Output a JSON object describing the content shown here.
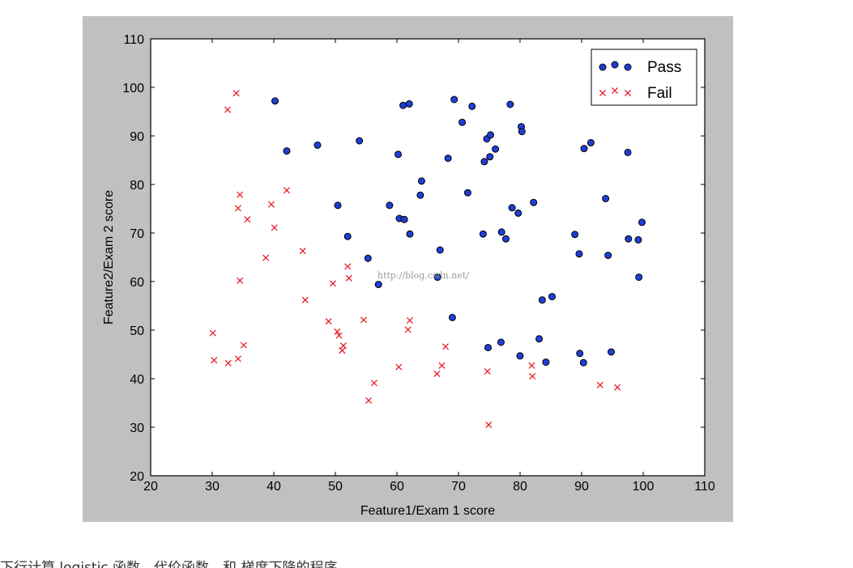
{
  "chart_data": {
    "type": "scatter",
    "xlabel": "Feature1/Exam 1 score",
    "ylabel": "Feature2/Exam 2 score",
    "xlim": [
      20,
      110
    ],
    "ylim": [
      20,
      110
    ],
    "xticks": [
      20,
      30,
      40,
      50,
      60,
      70,
      80,
      90,
      100,
      110
    ],
    "yticks": [
      20,
      30,
      40,
      50,
      60,
      70,
      80,
      90,
      100,
      110
    ],
    "grid": false,
    "legend_position": "top-right",
    "series": [
      {
        "name": "Pass",
        "marker": "circle",
        "color": "#1f3fd8",
        "edge_color": "#000000",
        "points": [
          [
            40.2,
            97.2
          ],
          [
            42.1,
            86.9
          ],
          [
            47.1,
            88.1
          ],
          [
            53.9,
            89.0
          ],
          [
            61.0,
            96.3
          ],
          [
            62.0,
            96.6
          ],
          [
            60.2,
            86.2
          ],
          [
            69.3,
            97.5
          ],
          [
            70.6,
            92.8
          ],
          [
            72.2,
            96.1
          ],
          [
            78.4,
            96.5
          ],
          [
            74.6,
            89.4
          ],
          [
            75.2,
            90.2
          ],
          [
            80.2,
            91.9
          ],
          [
            80.3,
            90.9
          ],
          [
            68.3,
            85.4
          ],
          [
            74.2,
            84.7
          ],
          [
            75.1,
            85.7
          ],
          [
            76.0,
            87.3
          ],
          [
            90.4,
            87.4
          ],
          [
            91.5,
            88.6
          ],
          [
            97.5,
            86.6
          ],
          [
            50.4,
            75.7
          ],
          [
            58.8,
            75.7
          ],
          [
            64.0,
            80.7
          ],
          [
            63.8,
            77.8
          ],
          [
            71.5,
            78.3
          ],
          [
            60.4,
            73.0
          ],
          [
            61.2,
            72.8
          ],
          [
            78.7,
            75.2
          ],
          [
            79.7,
            74.1
          ],
          [
            82.2,
            76.3
          ],
          [
            93.9,
            77.1
          ],
          [
            99.8,
            72.2
          ],
          [
            52.0,
            69.3
          ],
          [
            62.1,
            69.8
          ],
          [
            74.0,
            69.8
          ],
          [
            77.0,
            70.2
          ],
          [
            77.7,
            68.8
          ],
          [
            88.9,
            69.7
          ],
          [
            97.6,
            68.8
          ],
          [
            99.2,
            68.6
          ],
          [
            55.3,
            64.8
          ],
          [
            67.0,
            66.5
          ],
          [
            66.6,
            60.9
          ],
          [
            57.0,
            59.4
          ],
          [
            89.6,
            65.7
          ],
          [
            94.3,
            65.4
          ],
          [
            99.3,
            60.9
          ],
          [
            85.2,
            56.9
          ],
          [
            83.6,
            56.2
          ],
          [
            69.0,
            52.6
          ],
          [
            74.8,
            46.4
          ],
          [
            76.9,
            47.5
          ],
          [
            83.1,
            48.2
          ],
          [
            80.0,
            44.7
          ],
          [
            84.2,
            43.4
          ],
          [
            89.7,
            45.2
          ],
          [
            90.3,
            43.3
          ],
          [
            94.8,
            45.5
          ]
        ]
      },
      {
        "name": "Fail",
        "marker": "x",
        "color": "#e8101c",
        "points": [
          [
            32.5,
            95.4
          ],
          [
            33.9,
            98.8
          ],
          [
            34.5,
            77.9
          ],
          [
            34.2,
            75.1
          ],
          [
            35.7,
            72.8
          ],
          [
            39.6,
            75.9
          ],
          [
            40.1,
            71.1
          ],
          [
            42.1,
            78.8
          ],
          [
            38.7,
            64.9
          ],
          [
            44.7,
            66.3
          ],
          [
            52.0,
            63.1
          ],
          [
            52.2,
            60.7
          ],
          [
            49.6,
            59.6
          ],
          [
            34.5,
            60.2
          ],
          [
            45.1,
            56.2
          ],
          [
            30.1,
            49.4
          ],
          [
            30.3,
            43.8
          ],
          [
            32.6,
            43.2
          ],
          [
            34.2,
            44.1
          ],
          [
            35.1,
            46.9
          ],
          [
            48.9,
            51.8
          ],
          [
            50.3,
            49.7
          ],
          [
            50.6,
            48.9
          ],
          [
            51.3,
            46.8
          ],
          [
            51.1,
            45.8
          ],
          [
            54.6,
            52.1
          ],
          [
            61.8,
            50.1
          ],
          [
            62.1,
            52.0
          ],
          [
            60.3,
            42.4
          ],
          [
            56.3,
            39.1
          ],
          [
            55.4,
            35.5
          ],
          [
            66.5,
            41.0
          ],
          [
            67.3,
            42.7
          ],
          [
            67.9,
            46.6
          ],
          [
            74.7,
            41.5
          ],
          [
            81.9,
            42.7
          ],
          [
            82.0,
            40.5
          ],
          [
            93.0,
            38.7
          ],
          [
            95.8,
            38.2
          ],
          [
            74.9,
            30.5
          ]
        ]
      }
    ]
  },
  "watermark_text": "http://blog.csdn.net/",
  "caption_text": "下行计算 logistic 函数、代价函数，和 梯度下降的程序。"
}
